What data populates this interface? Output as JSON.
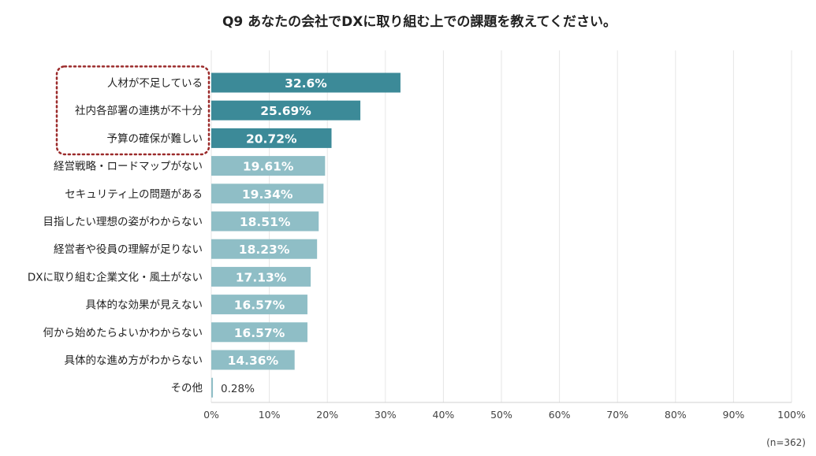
{
  "chart_data": {
    "type": "bar",
    "orientation": "horizontal",
    "title": "Q9 あなたの会社でDXに取り組む上での課題を教えてください。",
    "categories": [
      "人材が不足している",
      "社内各部署の連携が不十分",
      "予算の確保が難しい",
      "経営戦略・ロードマップがない",
      "セキュリティ上の問題がある",
      "目指したい理想の姿がわからない",
      "経営者や役員の理解が足りない",
      "DXに取り組む企業文化・風土がない",
      "具体的な効果が見えない",
      "何から始めたらよいかわからない",
      "具体的な進め方がわからない",
      "その他"
    ],
    "values": [
      32.6,
      25.69,
      20.72,
      19.61,
      19.34,
      18.51,
      18.23,
      17.13,
      16.57,
      16.57,
      14.36,
      0.28
    ],
    "value_labels": [
      "32.6%",
      "25.69%",
      "20.72%",
      "19.61%",
      "19.34%",
      "18.51%",
      "18.23%",
      "17.13%",
      "16.57%",
      "16.57%",
      "14.36%",
      "0.28%"
    ],
    "highlighted_count": 3,
    "xlim": [
      0,
      100
    ],
    "xticks": [
      "0%",
      "10%",
      "20%",
      "30%",
      "40%",
      "50%",
      "60%",
      "70%",
      "80%",
      "90%",
      "100%"
    ],
    "grid": true,
    "note": "(n=362)",
    "colors": {
      "highlight": "#3c8a98",
      "normal": "#8fbec6",
      "grid": "#e6e6e6",
      "dotted_box": "#9b2b2b",
      "label_text": "#222222",
      "bar_text": "#ffffff"
    }
  }
}
